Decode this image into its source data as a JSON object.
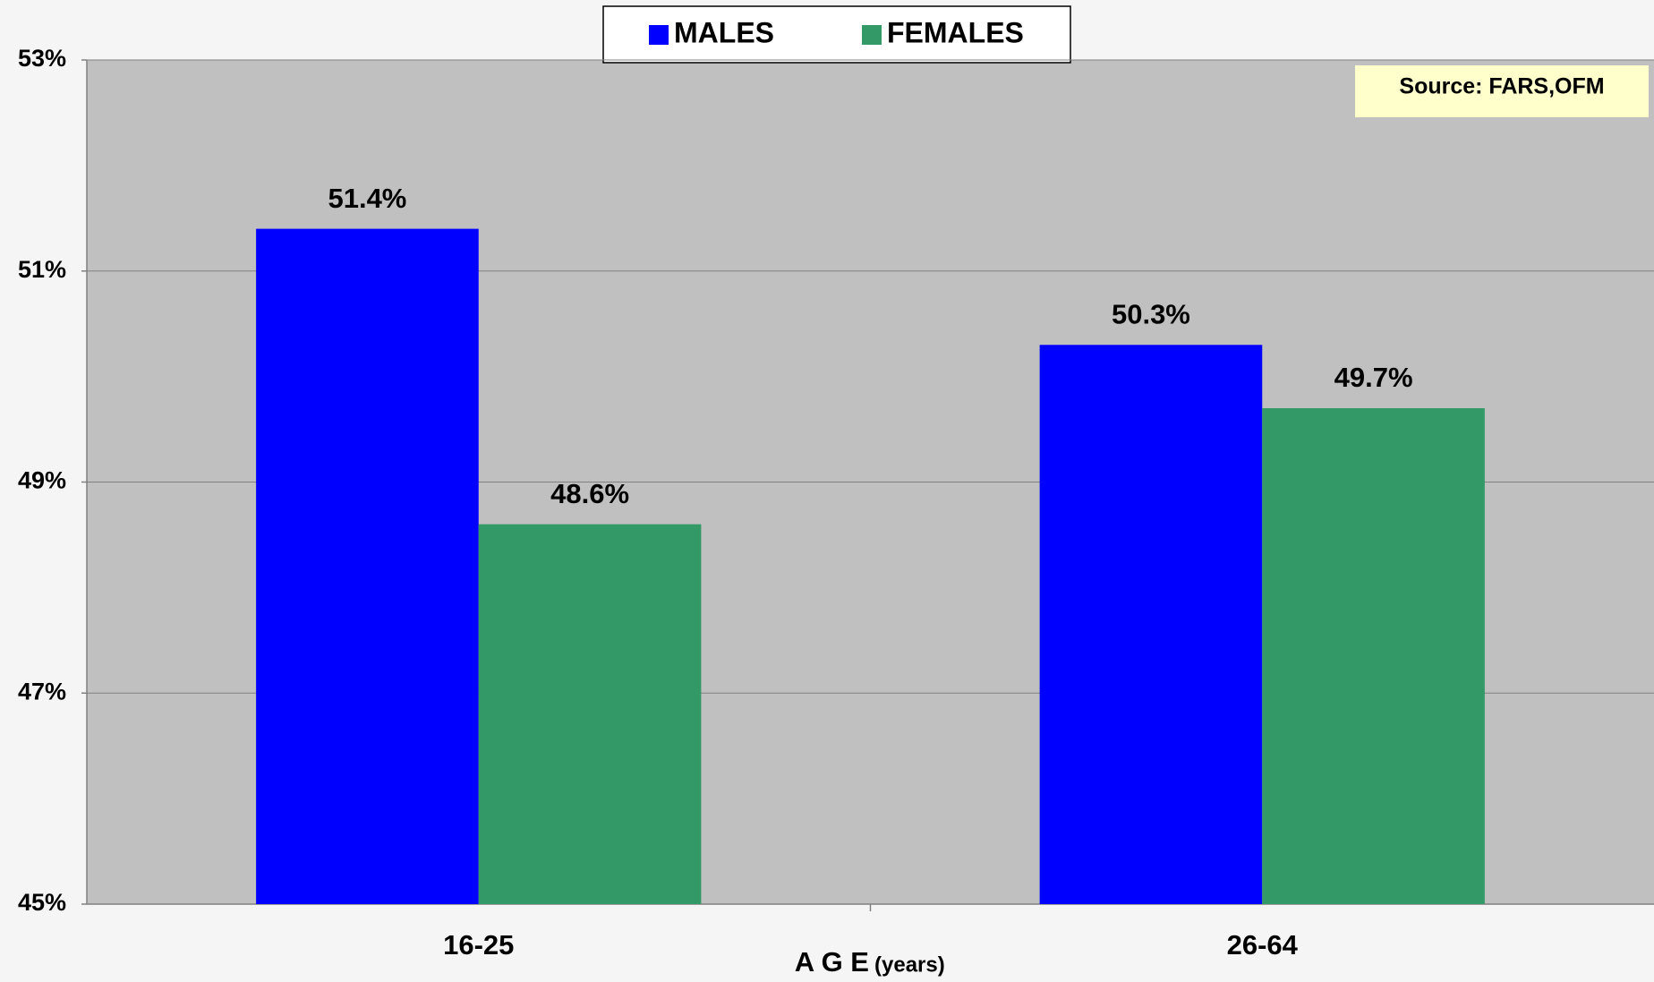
{
  "chart_data": {
    "type": "bar",
    "categories": [
      "16-25",
      "26-64"
    ],
    "series": [
      {
        "name": "MALES",
        "color": "#0000ff",
        "values": [
          51.4,
          50.3
        ],
        "value_labels": [
          "51.4%",
          "50.3%"
        ]
      },
      {
        "name": "FEMALES",
        "color": "#339966",
        "values": [
          48.6,
          49.7
        ],
        "value_labels": [
          "48.6%",
          "49.7%"
        ]
      }
    ],
    "ylim": [
      45,
      53
    ],
    "yticks": [
      {
        "value": 45,
        "label": "45%"
      },
      {
        "value": 47,
        "label": "47%"
      },
      {
        "value": 49,
        "label": "49%"
      },
      {
        "value": 51,
        "label": "51%"
      },
      {
        "value": 53,
        "label": "53%"
      }
    ],
    "x_label": "A G E",
    "x_label_unit": "(years)",
    "annotation": "Source: FARS,OFM",
    "grid": true,
    "legend": "top"
  }
}
